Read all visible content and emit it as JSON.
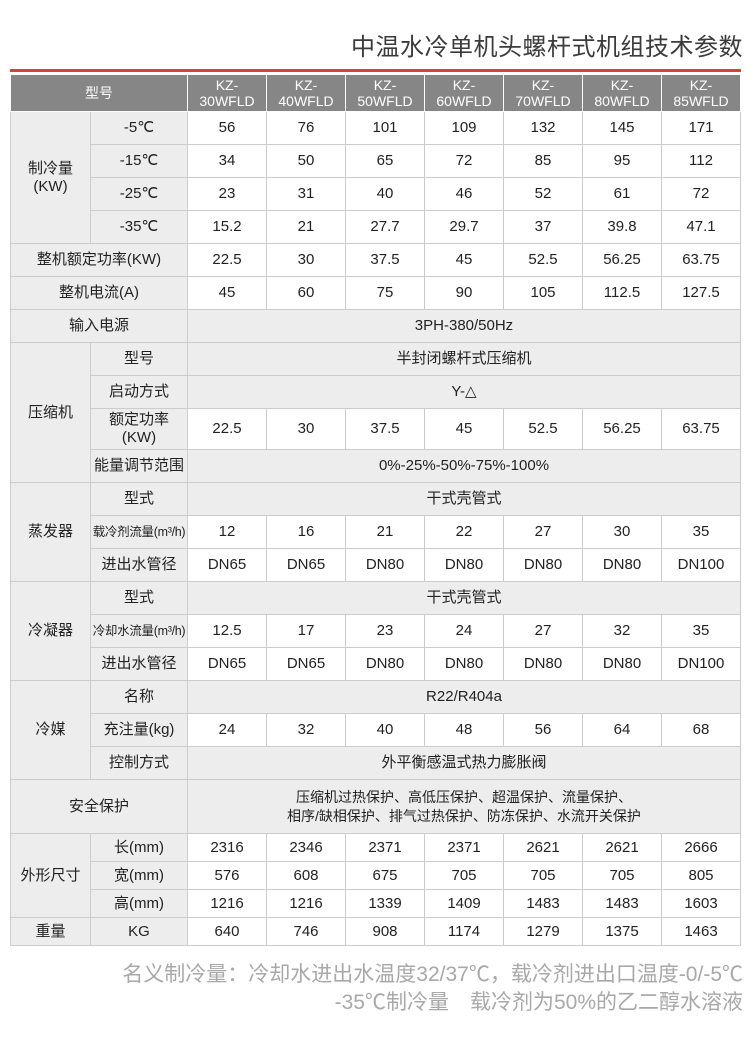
{
  "title": "中温水冷单机头螺杆式机组技术参数",
  "colors": {
    "accent": "#d2482e",
    "header_bg": "#868686",
    "label_bg": "#ededed",
    "border": "#cccccc",
    "footnote_color": "#a8a8a8",
    "title_color": "#3b3b3b"
  },
  "table": {
    "header": {
      "label": "型号"
    },
    "models": [
      "KZ-30WFLD",
      "KZ-40WFLD",
      "KZ-50WFLD",
      "KZ-60WFLD",
      "KZ-70WFLD",
      "KZ-80WFLD",
      "KZ-85WFLD"
    ],
    "rows": [
      {
        "group": {
          "label": "制冷量(KW)",
          "span": 4
        },
        "label": "-5℃",
        "values": [
          "56",
          "76",
          "101",
          "109",
          "132",
          "145",
          "171"
        ]
      },
      {
        "label": "-15℃",
        "values": [
          "34",
          "50",
          "65",
          "72",
          "85",
          "95",
          "112"
        ]
      },
      {
        "label": "-25℃",
        "values": [
          "23",
          "31",
          "40",
          "46",
          "52",
          "61",
          "72"
        ]
      },
      {
        "label": "-35℃",
        "values": [
          "15.2",
          "21",
          "27.7",
          "29.7",
          "37",
          "39.8",
          "47.1"
        ]
      },
      {
        "wide_label": "整机额定功率(KW)",
        "values": [
          "22.5",
          "30",
          "37.5",
          "45",
          "52.5",
          "56.25",
          "63.75"
        ]
      },
      {
        "wide_label": "整机电流(A)",
        "values": [
          "45",
          "60",
          "75",
          "90",
          "105",
          "112.5",
          "127.5"
        ]
      },
      {
        "wide_label": "输入电源",
        "span_value": "3PH-380/50Hz"
      },
      {
        "group": {
          "label": "压缩机",
          "span": 4
        },
        "label": "型号",
        "span_value": "半封闭螺杆式压缩机"
      },
      {
        "label": "启动方式",
        "span_value": "Y-△"
      },
      {
        "label": "额定功率(KW)",
        "values": [
          "22.5",
          "30",
          "37.5",
          "45",
          "52.5",
          "56.25",
          "63.75"
        ]
      },
      {
        "label": "能量调节范围",
        "span_value": "0%-25%-50%-75%-100%"
      },
      {
        "group": {
          "label": "蒸发器",
          "span": 3
        },
        "label": "型式",
        "span_value": "干式壳管式"
      },
      {
        "label": "载冷剂流量(m³/h)",
        "values": [
          "12",
          "16",
          "21",
          "22",
          "27",
          "30",
          "35"
        ]
      },
      {
        "label": "进出水管径",
        "values": [
          "DN65",
          "DN65",
          "DN80",
          "DN80",
          "DN80",
          "DN80",
          "DN100"
        ]
      },
      {
        "group": {
          "label": "冷凝器",
          "span": 3
        },
        "label": "型式",
        "span_value": "干式壳管式"
      },
      {
        "label": "冷却水流量(m³/h)",
        "values": [
          "12.5",
          "17",
          "23",
          "24",
          "27",
          "32",
          "35"
        ]
      },
      {
        "label": "进出水管径",
        "values": [
          "DN65",
          "DN65",
          "DN80",
          "DN80",
          "DN80",
          "DN80",
          "DN100"
        ]
      },
      {
        "group": {
          "label": "冷媒",
          "span": 3
        },
        "label": "名称",
        "span_value": "R22/R404a"
      },
      {
        "label": "充注量(kg)",
        "values": [
          "24",
          "32",
          "40",
          "48",
          "56",
          "64",
          "68"
        ]
      },
      {
        "label": "控制方式",
        "span_value": "外平衡感温式热力膨胀阀"
      },
      {
        "wide_label": "安全保护",
        "span_value_lines": [
          "压缩机过热保护、高低压保护、超温保护、流量保护、",
          "相序/缺相保护、排气过热保护、防冻保护、水流开关保护"
        ]
      },
      {
        "rowClass": "short",
        "group": {
          "label": "外形尺寸",
          "span": 3
        },
        "label": "长(mm)",
        "values": [
          "2316",
          "2346",
          "2371",
          "2371",
          "2621",
          "2621",
          "2666"
        ]
      },
      {
        "rowClass": "short",
        "label": "宽(mm)",
        "values": [
          "576",
          "608",
          "675",
          "705",
          "705",
          "705",
          "805"
        ]
      },
      {
        "rowClass": "short",
        "label": "高(mm)",
        "values": [
          "1216",
          "1216",
          "1339",
          "1409",
          "1483",
          "1483",
          "1603"
        ]
      },
      {
        "rowClass": "short",
        "group": {
          "label": "重量",
          "span": 1
        },
        "label": "KG",
        "values": [
          "640",
          "746",
          "908",
          "1174",
          "1279",
          "1375",
          "1463"
        ]
      }
    ]
  },
  "footer": {
    "line1": "名义制冷量：冷却水进出水温度32/37℃，载冷剂进出口温度-0/-5℃",
    "line2": "-35℃制冷量　载冷剂为50%的乙二醇水溶液"
  }
}
